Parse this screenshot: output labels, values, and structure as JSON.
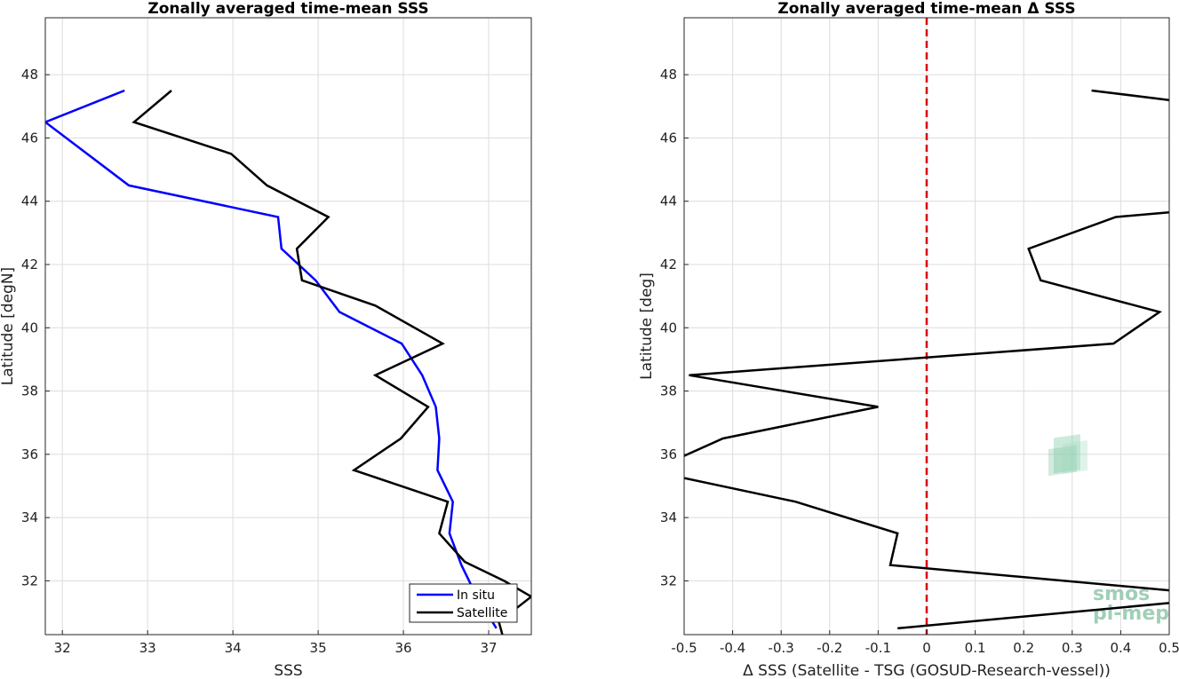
{
  "chart_data": [
    {
      "type": "line",
      "title": "Zonally averaged time-mean SSS",
      "xlabel": "SSS",
      "ylabel": "Latitude [degN]",
      "xlim": [
        31.8,
        37.5
      ],
      "ylim": [
        30.3,
        49.8
      ],
      "xticks": [
        32,
        33,
        34,
        35,
        36,
        37
      ],
      "yticks": [
        32,
        34,
        36,
        38,
        40,
        42,
        44,
        46,
        48
      ],
      "grid": true,
      "legend": "bottom-right",
      "series": [
        {
          "name": "In situ",
          "color": "#0000ff",
          "points": [
            [
              32.73,
              47.5
            ],
            [
              31.8,
              46.5
            ],
            [
              32.78,
              44.5
            ],
            [
              34.53,
              43.5
            ],
            [
              34.57,
              42.5
            ],
            [
              34.97,
              41.5
            ],
            [
              35.25,
              40.5
            ],
            [
              35.98,
              39.5
            ],
            [
              36.22,
              38.5
            ],
            [
              36.38,
              37.5
            ],
            [
              36.42,
              36.5
            ],
            [
              36.4,
              35.5
            ],
            [
              36.58,
              34.5
            ],
            [
              36.54,
              33.5
            ],
            [
              36.68,
              32.5
            ],
            [
              36.86,
              31.5
            ],
            [
              37.09,
              30.5
            ]
          ]
        },
        {
          "name": "Satellite",
          "color": "#000000",
          "points": [
            [
              33.28,
              47.5
            ],
            [
              32.84,
              46.5
            ],
            [
              33.98,
              45.5
            ],
            [
              34.4,
              44.5
            ],
            [
              35.12,
              43.5
            ],
            [
              34.75,
              42.5
            ],
            [
              34.81,
              41.5
            ],
            [
              35.67,
              40.7
            ],
            [
              36.46,
              39.5
            ],
            [
              35.67,
              38.5
            ],
            [
              36.29,
              37.5
            ],
            [
              35.97,
              36.5
            ],
            [
              35.42,
              35.5
            ],
            [
              36.52,
              34.5
            ],
            [
              36.42,
              33.5
            ],
            [
              36.72,
              32.6
            ],
            [
              37.18,
              32.0
            ],
            [
              37.5,
              31.5
            ],
            [
              37.12,
              30.7
            ],
            [
              37.16,
              30.3
            ]
          ]
        }
      ]
    },
    {
      "type": "line",
      "title": "Zonally averaged time-mean Δ SSS",
      "xlabel": "Δ SSS (Satellite - TSG (GOSUD-Research-vessel))",
      "ylabel": "Latitude [deg]",
      "xlim": [
        -0.5,
        0.5
      ],
      "ylim": [
        30.3,
        49.8
      ],
      "xticks": [
        -0.5,
        -0.4,
        -0.3,
        -0.2,
        -0.1,
        0,
        0.1,
        0.2,
        0.3,
        0.4,
        0.5
      ],
      "xticklabels": [
        "-0.5",
        "-0.4",
        "-0.3",
        "-0.2",
        "-0.1",
        "0",
        "0.1",
        "0.2",
        "0.3",
        "0.4",
        "0.5"
      ],
      "yticks": [
        32,
        34,
        36,
        38,
        40,
        42,
        44,
        46,
        48
      ],
      "grid": true,
      "reference_line": {
        "x": 0,
        "color": "#dd0000",
        "style": "dashed"
      },
      "series": [
        {
          "color": "#000000",
          "segments": [
            [
              [
                0.34,
                47.5
              ],
              [
                0.5,
                47.2
              ]
            ],
            [
              [
                0.5,
                43.65
              ],
              [
                0.39,
                43.5
              ],
              [
                0.21,
                42.5
              ],
              [
                0.235,
                41.5
              ],
              [
                0.48,
                40.5
              ],
              [
                0.385,
                39.5
              ],
              [
                -0.49,
                38.5
              ],
              [
                -0.1,
                37.5
              ],
              [
                -0.42,
                36.5
              ],
              [
                -0.5,
                35.95
              ]
            ],
            [
              [
                -0.5,
                35.25
              ],
              [
                -0.27,
                34.5
              ],
              [
                -0.06,
                33.5
              ],
              [
                -0.075,
                32.5
              ],
              [
                0.5,
                31.7
              ]
            ],
            [
              [
                0.5,
                31.3
              ],
              [
                -0.06,
                30.5
              ]
            ]
          ]
        }
      ]
    }
  ],
  "legend": {
    "items": [
      "In situ",
      "Satellite"
    ]
  },
  "watermark": {
    "line1": "smos",
    "line2": "pi-mep"
  }
}
